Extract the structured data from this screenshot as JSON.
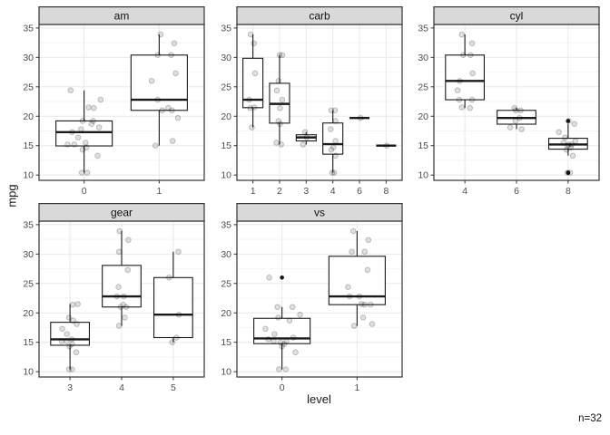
{
  "chart_data": {
    "type": "boxplot",
    "title": "",
    "xlabel": "level",
    "ylabel": "mpg",
    "annotation": "n=32",
    "grid": true,
    "legend": "none",
    "ylim": [
      9.1,
      35.6
    ],
    "yticks": [
      10,
      15,
      20,
      25,
      30,
      35
    ],
    "yticks_minor": [
      12.5,
      17.5,
      22.5,
      27.5,
      32.5
    ],
    "facets": [
      {
        "label": "am",
        "levels": [
          {
            "level": "0",
            "box": {
              "lo": 10.4,
              "q1": 14.95,
              "med": 17.3,
              "q3": 19.2,
              "hi": 24.4
            },
            "outliers": [],
            "points": [
              [
                24.4,
                -0.18
              ],
              [
                22.8,
                0.22
              ],
              [
                21.5,
                0.06
              ],
              [
                21.4,
                0.13
              ],
              [
                19.2,
                -0.02
              ],
              [
                19.2,
                0.12
              ],
              [
                18.7,
                0.1
              ],
              [
                18.1,
                0.2
              ],
              [
                17.8,
                -0.04
              ],
              [
                17.3,
                -0.16
              ],
              [
                16.4,
                -0.08
              ],
              [
                15.5,
                0.02
              ],
              [
                15.2,
                -0.22
              ],
              [
                15.2,
                -0.13
              ],
              [
                14.7,
                0.03
              ],
              [
                14.3,
                -0.02
              ],
              [
                13.3,
                0.18
              ],
              [
                10.4,
                -0.03
              ],
              [
                10.4,
                0.04
              ]
            ]
          },
          {
            "level": "1",
            "box": {
              "lo": 15.0,
              "q1": 21.0,
              "med": 22.8,
              "q3": 30.4,
              "hi": 33.9
            },
            "outliers": [],
            "points": [
              [
                33.9,
                0.02
              ],
              [
                32.4,
                0.2
              ],
              [
                30.4,
                -0.02
              ],
              [
                30.4,
                0.16
              ],
              [
                27.3,
                0.22
              ],
              [
                26.0,
                -0.1
              ],
              [
                22.8,
                -0.02
              ],
              [
                21.4,
                0.12
              ],
              [
                21.0,
                0.04
              ],
              [
                21.0,
                0.17
              ],
              [
                19.7,
                0.25
              ],
              [
                15.8,
                0.18
              ],
              [
                15.0,
                -0.05
              ]
            ]
          }
        ]
      },
      {
        "label": "carb",
        "levels": [
          {
            "level": "1",
            "box": {
              "lo": 18.1,
              "q1": 21.45,
              "med": 22.8,
              "q3": 29.85,
              "hi": 33.9
            },
            "outliers": [],
            "points": [
              [
                33.9,
                -0.08
              ],
              [
                32.4,
                0.04
              ],
              [
                27.3,
                0.08
              ],
              [
                22.8,
                -0.14
              ],
              [
                21.5,
                0.05
              ],
              [
                21.4,
                -0.1
              ],
              [
                18.1,
                -0.04
              ]
            ]
          },
          {
            "level": "2",
            "box": {
              "lo": 15.2,
              "q1": 18.825,
              "med": 22.1,
              "q3": 25.6,
              "hi": 30.4
            },
            "outliers": [],
            "points": [
              [
                30.4,
                0.0
              ],
              [
                30.4,
                0.1
              ],
              [
                26.0,
                -0.04
              ],
              [
                24.4,
                -0.1
              ],
              [
                22.8,
                0.1
              ],
              [
                21.4,
                0.02
              ],
              [
                19.2,
                -0.04
              ],
              [
                18.7,
                0.02
              ],
              [
                15.5,
                -0.12
              ],
              [
                15.2,
                0.06
              ]
            ]
          },
          {
            "level": "3",
            "box": {
              "lo": 15.2,
              "q1": 15.8,
              "med": 16.4,
              "q3": 16.85,
              "hi": 17.3
            },
            "outliers": [],
            "points": [
              [
                17.3,
                -0.04
              ],
              [
                16.4,
                0.02
              ],
              [
                15.2,
                -0.12
              ]
            ]
          },
          {
            "level": "4",
            "box": {
              "lo": 10.4,
              "q1": 13.55,
              "med": 15.25,
              "q3": 18.85,
              "hi": 21.0
            },
            "outliers": [],
            "points": [
              [
                21.0,
                -0.06
              ],
              [
                21.0,
                0.08
              ],
              [
                19.2,
                0.1
              ],
              [
                17.8,
                -0.08
              ],
              [
                15.8,
                0.1
              ],
              [
                14.7,
                0.02
              ],
              [
                14.3,
                -0.06
              ],
              [
                13.3,
                0.1
              ],
              [
                10.4,
                -0.02
              ],
              [
                10.4,
                0.05
              ]
            ]
          },
          {
            "level": "6",
            "box": {
              "lo": 19.7,
              "q1": 19.7,
              "med": 19.7,
              "q3": 19.7,
              "hi": 19.7
            },
            "outliers": [],
            "points": [
              [
                19.7,
                0.04
              ]
            ]
          },
          {
            "level": "8",
            "box": {
              "lo": 15.0,
              "q1": 15.0,
              "med": 15.0,
              "q3": 15.0,
              "hi": 15.0
            },
            "outliers": [],
            "points": [
              [
                15.0,
                0.02
              ]
            ]
          }
        ]
      },
      {
        "label": "cyl",
        "levels": [
          {
            "level": "4",
            "box": {
              "lo": 21.4,
              "q1": 22.8,
              "med": 26.0,
              "q3": 30.4,
              "hi": 33.9
            },
            "outliers": [],
            "points": [
              [
                33.9,
                -0.06
              ],
              [
                32.4,
                0.14
              ],
              [
                30.4,
                -0.03
              ],
              [
                30.4,
                0.11
              ],
              [
                27.3,
                0.15
              ],
              [
                26.0,
                -0.1
              ],
              [
                24.4,
                -0.14
              ],
              [
                22.8,
                -0.11
              ],
              [
                22.8,
                0.14
              ],
              [
                21.5,
                -0.06
              ],
              [
                21.4,
                0.1
              ]
            ]
          },
          {
            "level": "6",
            "box": {
              "lo": 17.8,
              "q1": 18.65,
              "med": 19.7,
              "q3": 21.0,
              "hi": 21.4
            },
            "outliers": [],
            "points": [
              [
                21.4,
                -0.04
              ],
              [
                21.0,
                -0.01
              ],
              [
                21.0,
                0.08
              ],
              [
                19.7,
                0.06
              ],
              [
                19.2,
                -0.02
              ],
              [
                18.1,
                -0.12
              ],
              [
                17.8,
                0.1
              ]
            ]
          },
          {
            "level": "8",
            "box": {
              "lo": 13.3,
              "q1": 14.4,
              "med": 15.2,
              "q3": 16.25,
              "hi": 18.7
            },
            "outliers": [
              19.2,
              10.4,
              10.4
            ],
            "points": [
              [
                19.2,
                0.01
              ],
              [
                18.7,
                0.12
              ],
              [
                17.3,
                -0.18
              ],
              [
                16.4,
                -0.06
              ],
              [
                15.8,
                0.14
              ],
              [
                15.5,
                -0.09
              ],
              [
                15.2,
                0.01
              ],
              [
                15.2,
                0.07
              ],
              [
                15.0,
                -0.01
              ],
              [
                14.7,
                0.05
              ],
              [
                14.3,
                -0.03
              ],
              [
                13.3,
                0.09
              ],
              [
                10.4,
                -0.01
              ],
              [
                10.4,
                0.04
              ]
            ]
          }
        ]
      },
      {
        "label": "gear",
        "levels": [
          {
            "level": "3",
            "box": {
              "lo": 10.4,
              "q1": 14.5,
              "med": 15.5,
              "q3": 18.4,
              "hi": 21.5
            },
            "outliers": [],
            "points": [
              [
                21.5,
                0.15
              ],
              [
                21.4,
                0.05
              ],
              [
                19.2,
                -0.02
              ],
              [
                18.7,
                0.06
              ],
              [
                18.1,
                0.13
              ],
              [
                17.3,
                -0.15
              ],
              [
                16.4,
                -0.06
              ],
              [
                15.5,
                0.03
              ],
              [
                15.2,
                -0.16
              ],
              [
                15.2,
                -0.07
              ],
              [
                14.7,
                0.04
              ],
              [
                14.3,
                -0.01
              ],
              [
                13.3,
                0.12
              ],
              [
                10.4,
                -0.02
              ],
              [
                10.4,
                0.04
              ]
            ]
          },
          {
            "level": "4",
            "box": {
              "lo": 17.8,
              "q1": 21.0,
              "med": 22.8,
              "q3": 28.075,
              "hi": 33.9
            },
            "outliers": [],
            "points": [
              [
                33.9,
                -0.04
              ],
              [
                32.4,
                0.13
              ],
              [
                30.4,
                -0.05
              ],
              [
                27.3,
                0.12
              ],
              [
                24.4,
                -0.06
              ],
              [
                22.8,
                -0.09
              ],
              [
                22.8,
                0.04
              ],
              [
                21.4,
                0.03
              ],
              [
                21.0,
                -0.02
              ],
              [
                21.0,
                0.09
              ],
              [
                19.2,
                0.06
              ],
              [
                17.8,
                -0.05
              ]
            ]
          },
          {
            "level": "5",
            "box": {
              "lo": 15.0,
              "q1": 15.8,
              "med": 19.7,
              "q3": 26.0,
              "hi": 30.4
            },
            "outliers": [],
            "points": [
              [
                30.4,
                0.1
              ],
              [
                26.0,
                -0.08
              ],
              [
                19.7,
                0.11
              ],
              [
                15.8,
                0.06
              ],
              [
                15.0,
                -0.02
              ]
            ]
          }
        ]
      },
      {
        "label": "vs",
        "levels": [
          {
            "level": "0",
            "box": {
              "lo": 10.4,
              "q1": 14.775,
              "med": 15.65,
              "q3": 19.075,
              "hi": 21.0
            },
            "outliers": [
              26.0
            ],
            "points": [
              [
                26.0,
                -0.17
              ],
              [
                21.0,
                -0.06
              ],
              [
                21.0,
                0.14
              ],
              [
                19.7,
                0.24
              ],
              [
                19.2,
                -0.05
              ],
              [
                18.7,
                0.1
              ],
              [
                17.3,
                -0.22
              ],
              [
                16.4,
                -0.1
              ],
              [
                15.8,
                0.15
              ],
              [
                15.5,
                -0.18
              ],
              [
                15.2,
                -0.11
              ],
              [
                15.2,
                0.06
              ],
              [
                15.0,
                -0.02
              ],
              [
                14.7,
                0.03
              ],
              [
                14.3,
                0.0
              ],
              [
                13.3,
                0.18
              ],
              [
                10.4,
                -0.04
              ],
              [
                10.4,
                0.05
              ]
            ]
          },
          {
            "level": "1",
            "box": {
              "lo": 17.8,
              "q1": 21.4,
              "med": 22.8,
              "q3": 29.625,
              "hi": 33.9
            },
            "outliers": [],
            "points": [
              [
                33.9,
                -0.05
              ],
              [
                32.4,
                0.15
              ],
              [
                30.4,
                -0.07
              ],
              [
                30.4,
                0.1
              ],
              [
                27.3,
                0.14
              ],
              [
                24.4,
                -0.12
              ],
              [
                22.8,
                -0.1
              ],
              [
                22.8,
                0.03
              ],
              [
                21.5,
                0.06
              ],
              [
                21.4,
                0.1
              ],
              [
                21.4,
                0.18
              ],
              [
                19.2,
                0.08
              ],
              [
                18.1,
                0.2
              ],
              [
                17.8,
                -0.04
              ]
            ]
          }
        ]
      }
    ]
  },
  "colors": {
    "background": "#ffffff",
    "strip_bg": "#d9d9d9",
    "panel_border": "#333333",
    "grid_major": "#e8e8e8",
    "grid_minor": "#f4f4f4",
    "box_stroke": "#1a1a1a",
    "box_fill": "#ffffff",
    "point_fill": "rgba(0,0,0,0.12)",
    "point_stroke": "rgba(0,0,0,0.22)",
    "outlier": "#1a1a1a",
    "tick_mark": "#333333",
    "tick_text": "#4d4d4d"
  }
}
